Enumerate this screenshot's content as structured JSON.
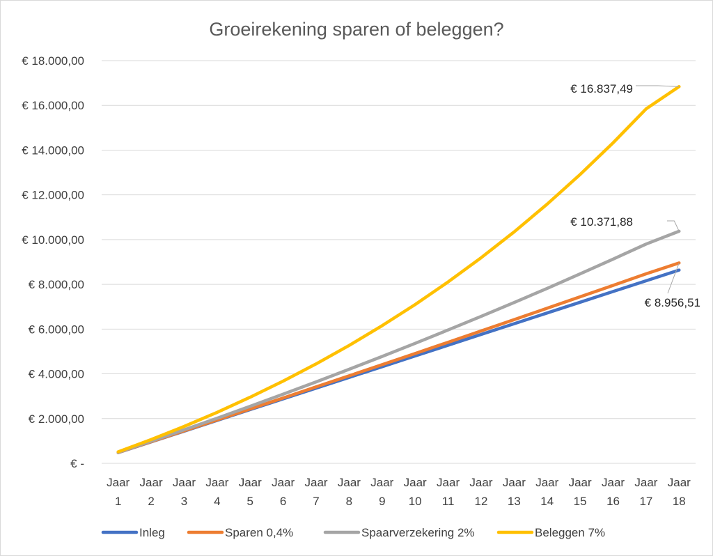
{
  "chart_data": {
    "type": "line",
    "title": "Groeirekening sparen of beleggen?",
    "xlabel": "",
    "ylabel": "",
    "categories": [
      [
        "Jaar",
        "1"
      ],
      [
        "Jaar",
        "2"
      ],
      [
        "Jaar",
        "3"
      ],
      [
        "Jaar",
        "4"
      ],
      [
        "Jaar",
        "5"
      ],
      [
        "Jaar",
        "6"
      ],
      [
        "Jaar",
        "7"
      ],
      [
        "Jaar",
        "8"
      ],
      [
        "Jaar",
        "9"
      ],
      [
        "Jaar",
        "10"
      ],
      [
        "Jaar",
        "11"
      ],
      [
        "Jaar",
        "12"
      ],
      [
        "Jaar",
        "13"
      ],
      [
        "Jaar",
        "14"
      ],
      [
        "Jaar",
        "15"
      ],
      [
        "Jaar",
        "16"
      ],
      [
        "Jaar",
        "17"
      ],
      [
        "Jaar",
        "18"
      ]
    ],
    "ylim": [
      0,
      18000
    ],
    "yticks": [
      0,
      2000,
      4000,
      6000,
      8000,
      10000,
      12000,
      14000,
      16000,
      18000
    ],
    "ytick_labels": [
      "€ -",
      "€ 2.000,00",
      "€ 4.000,00",
      "€ 6.000,00",
      "€ 8.000,00",
      "€ 10.000,00",
      "€ 12.000,00",
      "€ 14.000,00",
      "€ 16.000,00",
      "€ 18.000,00"
    ],
    "grid": "horizontal",
    "legend_position": "bottom",
    "series": [
      {
        "name": "Inleg",
        "color": "#4472C4",
        "values": [
          480,
          960,
          1440,
          1920,
          2400,
          2880,
          3360,
          3840,
          4320,
          4800,
          5280,
          5760,
          6240,
          6720,
          7200,
          7680,
          8160,
          8640
        ]
      },
      {
        "name": "Sparen 0,4%",
        "color": "#ED7D31",
        "values": [
          482,
          966,
          1452,
          1940,
          2429,
          2921,
          3415,
          3911,
          4409,
          4909,
          5412,
          5916,
          6422,
          6931,
          7442,
          7955,
          8470,
          8956.51
        ]
      },
      {
        "name": "Spaarverzekering 2%",
        "color": "#A5A5A5",
        "values": [
          490,
          989,
          1499,
          2018,
          2549,
          3089,
          3641,
          4203,
          4777,
          5362,
          5959,
          6567,
          7188,
          7821,
          8467,
          9127,
          9799,
          10371.88
        ]
      },
      {
        "name": "Beleggen 7%",
        "color": "#FFC000",
        "values": [
          514,
          1063,
          1651,
          2281,
          2954,
          3674,
          4445,
          5270,
          6153,
          7097,
          8108,
          9189,
          10345,
          11584,
          12908,
          14326,
          15843,
          16837.49
        ]
      }
    ],
    "annotations": [
      {
        "text": "€ 16.837,49",
        "series": 3,
        "point": 17
      },
      {
        "text": "€ 10.371,88",
        "series": 2,
        "point": 17
      },
      {
        "text": "€ 8.956,51",
        "series": 1,
        "point": 17
      }
    ]
  }
}
